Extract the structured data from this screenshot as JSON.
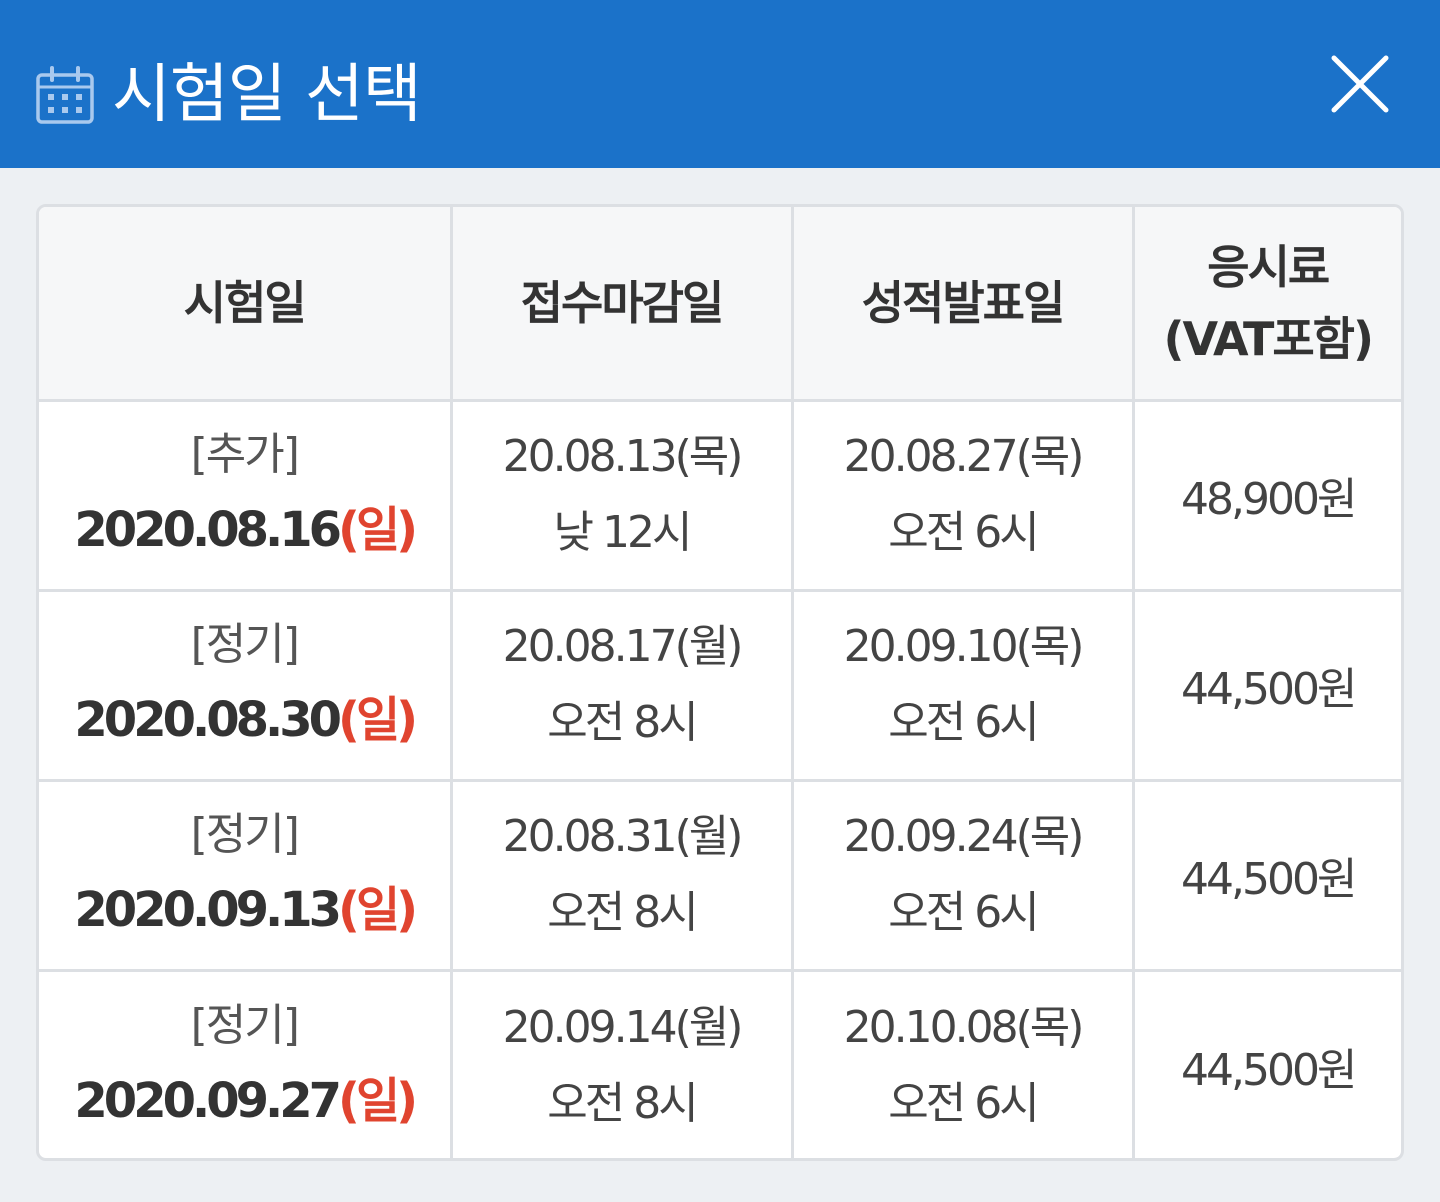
{
  "header": {
    "title": "시험일 선택",
    "icon": "calendar-icon",
    "close_icon": "close-icon",
    "background_color": "#1b72c9"
  },
  "table": {
    "columns": [
      "시험일",
      "접수마감일",
      "성적발표일",
      "응시료"
    ],
    "fee_column_note": "(VAT포함)",
    "rows": [
      {
        "type": "[추가]",
        "exam_date": "2020.08.16",
        "exam_weekday": "(일)",
        "deadline_date": "20.08.13(목)",
        "deadline_time": "낮 12시",
        "result_date": "20.08.27(목)",
        "result_time": "오전 6시",
        "fee": "48,900원"
      },
      {
        "type": "[정기]",
        "exam_date": "2020.08.30",
        "exam_weekday": "(일)",
        "deadline_date": "20.08.17(월)",
        "deadline_time": "오전 8시",
        "result_date": "20.09.10(목)",
        "result_time": "오전 6시",
        "fee": "44,500원"
      },
      {
        "type": "[정기]",
        "exam_date": "2020.09.13",
        "exam_weekday": "(일)",
        "deadline_date": "20.08.31(월)",
        "deadline_time": "오전 8시",
        "result_date": "20.09.24(목)",
        "result_time": "오전 6시",
        "fee": "44,500원"
      },
      {
        "type": "[정기]",
        "exam_date": "2020.09.27",
        "exam_weekday": "(일)",
        "deadline_date": "20.09.14(월)",
        "deadline_time": "오전 8시",
        "result_date": "20.10.08(목)",
        "result_time": "오전 6시",
        "fee": "44,500원"
      }
    ]
  },
  "colors": {
    "weekday_accent": "#e0442f",
    "border": "#dcdfe3",
    "header_cell_bg": "#f6f7f8"
  }
}
